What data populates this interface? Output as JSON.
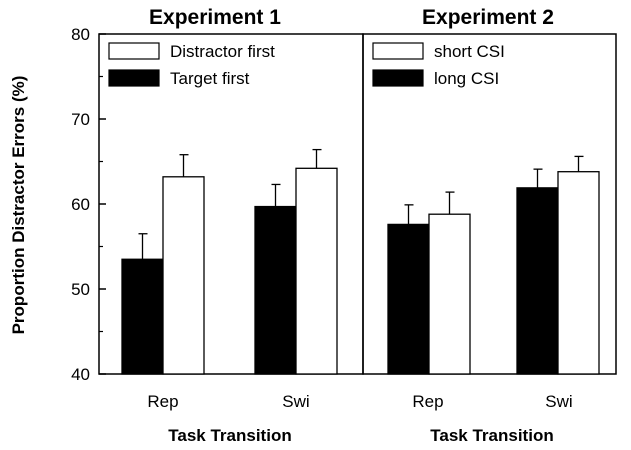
{
  "chart_data": [
    {
      "type": "bar",
      "title": "Experiment 1",
      "xlabel": "Task Transition",
      "ylabel": "Proportion Distractor Errors (%)",
      "ylim": [
        40,
        80
      ],
      "yticks": [
        40,
        50,
        60,
        70,
        80
      ],
      "categories": [
        "Rep",
        "Swi"
      ],
      "legend_position": "top-left",
      "series": [
        {
          "name": "Target first",
          "color": "#000000",
          "values": [
            53.5,
            59.7
          ],
          "errors": [
            3.0,
            2.6
          ]
        },
        {
          "name": "Distractor first",
          "color": "#ffffff",
          "values": [
            63.2,
            64.2
          ],
          "errors": [
            2.6,
            2.2
          ]
        }
      ],
      "legend": [
        "Distractor first",
        "Target first"
      ]
    },
    {
      "type": "bar",
      "title": "Experiment 2",
      "xlabel": "Task Transition",
      "ylabel": "",
      "ylim": [
        40,
        80
      ],
      "categories": [
        "Rep",
        "Swi"
      ],
      "legend_position": "top-left",
      "series": [
        {
          "name": "long CSI",
          "color": "#000000",
          "values": [
            57.6,
            61.9
          ],
          "errors": [
            2.3,
            2.2
          ]
        },
        {
          "name": "short CSI",
          "color": "#ffffff",
          "values": [
            58.8,
            63.8
          ],
          "errors": [
            2.6,
            1.8
          ]
        }
      ],
      "legend": [
        "short CSI",
        "long CSI"
      ]
    }
  ]
}
